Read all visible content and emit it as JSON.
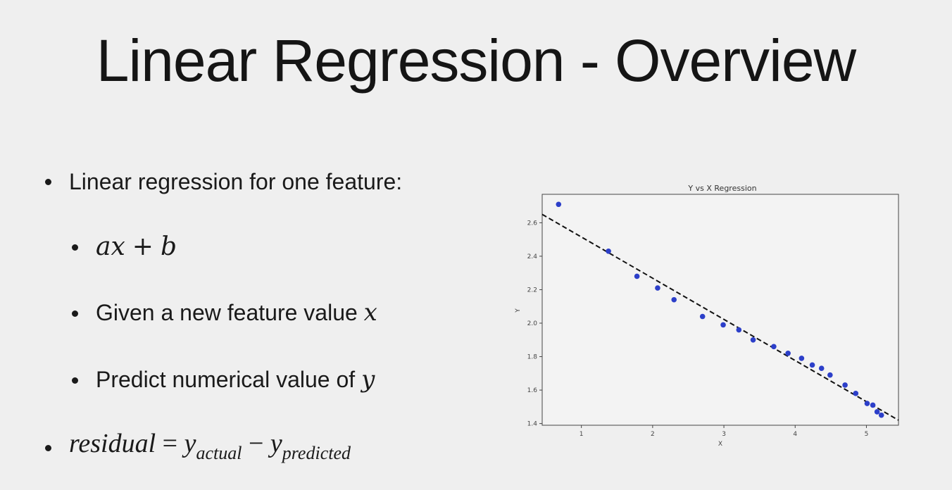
{
  "slide": {
    "title": "Linear Regression - Overview",
    "bullets": {
      "b1": "Linear regression for one feature:",
      "b2_a": "ax",
      "b2_op": "+",
      "b2_b": "b",
      "b3_text": "Given a new feature value ",
      "b3_var": "x",
      "b4_text": "Predict numerical value of ",
      "b4_var": "y",
      "b5_lhs": "residual",
      "b5_eq": "=",
      "b5_y1": "y",
      "b5_sub1": "actual",
      "b5_minus": "−",
      "b5_y2": "y",
      "b5_sub2": "predicted"
    }
  },
  "chart_data": {
    "type": "scatter",
    "title": "Y vs X Regression",
    "xlabel": "X",
    "ylabel": "Y",
    "xlim": [
      0.45,
      5.45
    ],
    "ylim": [
      1.39,
      2.77
    ],
    "xticks": [
      1,
      2,
      3,
      4,
      5
    ],
    "yticks": [
      1.4,
      1.6,
      1.8,
      2.0,
      2.2,
      2.4,
      2.6
    ],
    "xtick_labels": [
      "1",
      "2",
      "3",
      "4",
      "5"
    ],
    "ytick_labels": [
      "1.4",
      "1.6",
      "1.8",
      "2.0",
      "2.2",
      "2.4",
      "2.6"
    ],
    "points_color": "#2c3fc9",
    "line_color": "#111111",
    "points": [
      [
        0.68,
        2.71
      ],
      [
        1.38,
        2.43
      ],
      [
        1.78,
        2.28
      ],
      [
        2.07,
        2.21
      ],
      [
        2.3,
        2.14
      ],
      [
        2.7,
        2.04
      ],
      [
        2.99,
        1.99
      ],
      [
        3.21,
        1.96
      ],
      [
        3.41,
        1.9
      ],
      [
        3.7,
        1.86
      ],
      [
        3.9,
        1.82
      ],
      [
        4.09,
        1.79
      ],
      [
        4.24,
        1.75
      ],
      [
        4.37,
        1.73
      ],
      [
        4.49,
        1.69
      ],
      [
        4.7,
        1.63
      ],
      [
        4.85,
        1.58
      ],
      [
        5.01,
        1.52
      ],
      [
        5.09,
        1.51
      ],
      [
        5.15,
        1.47
      ],
      [
        5.21,
        1.45
      ]
    ],
    "fit_line": [
      [
        0.45,
        2.65
      ],
      [
        5.45,
        1.42
      ]
    ]
  }
}
